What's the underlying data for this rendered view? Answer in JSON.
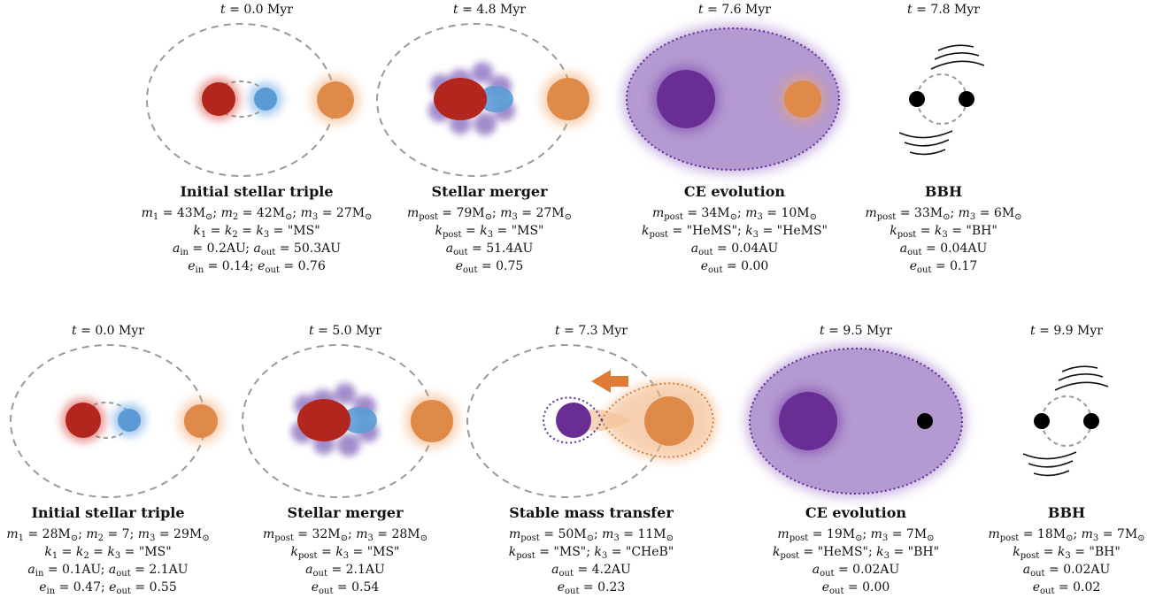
{
  "rows": [
    {
      "panels": [
        {
          "time": "0.0 Myr",
          "title": "Initial stellar triple",
          "info": [
            [
              [
                "i",
                "m"
              ],
              [
                "s",
                "1"
              ],
              [
                "t",
                " = 43M"
              ],
              [
                "s",
                "⊙"
              ],
              [
                "t",
                "; "
              ],
              [
                "i",
                "m"
              ],
              [
                "s",
                "2"
              ],
              [
                "t",
                " = 42M"
              ],
              [
                "s",
                "⊙"
              ],
              [
                "t",
                "; "
              ],
              [
                "i",
                "m"
              ],
              [
                "s",
                "3"
              ],
              [
                "t",
                " = 27M"
              ],
              [
                "s",
                "⊙"
              ]
            ],
            [
              [
                "i",
                "k"
              ],
              [
                "s",
                "1"
              ],
              [
                "t",
                " = "
              ],
              [
                "i",
                "k"
              ],
              [
                "s",
                "2"
              ],
              [
                "t",
                " = "
              ],
              [
                "i",
                "k"
              ],
              [
                "s",
                "3"
              ],
              [
                "t",
                " = \"MS\""
              ]
            ],
            [
              [
                "i",
                "a"
              ],
              [
                "s",
                "in"
              ],
              [
                "t",
                " = 0.2AU; "
              ],
              [
                "i",
                "a"
              ],
              [
                "s",
                "out"
              ],
              [
                "t",
                " = 50.3AU"
              ]
            ],
            [
              [
                "i",
                "e"
              ],
              [
                "s",
                "in"
              ],
              [
                "t",
                " = 0.14; "
              ],
              [
                "i",
                "e"
              ],
              [
                "s",
                "out"
              ],
              [
                "t",
                " = 0.76"
              ]
            ]
          ]
        },
        {
          "time": "4.8 Myr",
          "title": "Stellar merger",
          "info": [
            [
              [
                "i",
                "m"
              ],
              [
                "s",
                "post"
              ],
              [
                "t",
                " = 79M"
              ],
              [
                "s",
                "⊙"
              ],
              [
                "t",
                "; "
              ],
              [
                "i",
                "m"
              ],
              [
                "s",
                "3"
              ],
              [
                "t",
                " = 27M"
              ],
              [
                "s",
                "⊙"
              ]
            ],
            [
              [
                "i",
                "k"
              ],
              [
                "s",
                "post"
              ],
              [
                "t",
                " = "
              ],
              [
                "i",
                "k"
              ],
              [
                "s",
                "3"
              ],
              [
                "t",
                " = \"MS\""
              ]
            ],
            [
              [
                "i",
                "a"
              ],
              [
                "s",
                "out"
              ],
              [
                "t",
                " = 51.4AU"
              ]
            ],
            [
              [
                "i",
                "e"
              ],
              [
                "s",
                "out"
              ],
              [
                "t",
                " = 0.75"
              ]
            ]
          ]
        },
        {
          "time": "7.6 Myr",
          "title": "CE evolution",
          "info": [
            [
              [
                "i",
                "m"
              ],
              [
                "s",
                "post"
              ],
              [
                "t",
                " = 34M"
              ],
              [
                "s",
                "⊙"
              ],
              [
                "t",
                "; "
              ],
              [
                "i",
                "m"
              ],
              [
                "s",
                "3"
              ],
              [
                "t",
                " = 10M"
              ],
              [
                "s",
                "⊙"
              ]
            ],
            [
              [
                "i",
                "k"
              ],
              [
                "s",
                "post"
              ],
              [
                "t",
                " = \"HeMS\"; "
              ],
              [
                "i",
                "k"
              ],
              [
                "s",
                "3"
              ],
              [
                "t",
                " = \"HeMS\""
              ]
            ],
            [
              [
                "i",
                "a"
              ],
              [
                "s",
                "out"
              ],
              [
                "t",
                " = 0.04AU"
              ]
            ],
            [
              [
                "i",
                "e"
              ],
              [
                "s",
                "out"
              ],
              [
                "t",
                " = 0.00"
              ]
            ]
          ]
        },
        {
          "time": "7.8 Myr",
          "title": "BBH",
          "info": [
            [
              [
                "i",
                "m"
              ],
              [
                "s",
                "post"
              ],
              [
                "t",
                " = 33M"
              ],
              [
                "s",
                "⊙"
              ],
              [
                "t",
                "; "
              ],
              [
                "i",
                "m"
              ],
              [
                "s",
                "3"
              ],
              [
                "t",
                " = 6M"
              ],
              [
                "s",
                "⊙"
              ]
            ],
            [
              [
                "i",
                "k"
              ],
              [
                "s",
                "post"
              ],
              [
                "t",
                " = "
              ],
              [
                "i",
                "k"
              ],
              [
                "s",
                "3"
              ],
              [
                "t",
                " = \"BH\""
              ]
            ],
            [
              [
                "i",
                "a"
              ],
              [
                "s",
                "out"
              ],
              [
                "t",
                " = 0.04AU"
              ]
            ],
            [
              [
                "i",
                "e"
              ],
              [
                "s",
                "out"
              ],
              [
                "t",
                " = 0.17"
              ]
            ]
          ]
        }
      ]
    },
    {
      "panels": [
        {
          "time": "0.0 Myr",
          "title": "Initial stellar triple",
          "info": [
            [
              [
                "i",
                "m"
              ],
              [
                "s",
                "1"
              ],
              [
                "t",
                " = 28M"
              ],
              [
                "s",
                "⊙"
              ],
              [
                "t",
                "; "
              ],
              [
                "i",
                "m"
              ],
              [
                "s",
                "2"
              ],
              [
                "t",
                " = 7; "
              ],
              [
                "i",
                "m"
              ],
              [
                "s",
                "3"
              ],
              [
                "t",
                " = 29M"
              ],
              [
                "s",
                "⊙"
              ]
            ],
            [
              [
                "i",
                "k"
              ],
              [
                "s",
                "1"
              ],
              [
                "t",
                " = "
              ],
              [
                "i",
                "k"
              ],
              [
                "s",
                "2"
              ],
              [
                "t",
                " = "
              ],
              [
                "i",
                "k"
              ],
              [
                "s",
                "3"
              ],
              [
                "t",
                " = \"MS\""
              ]
            ],
            [
              [
                "i",
                "a"
              ],
              [
                "s",
                "in"
              ],
              [
                "t",
                " = 0.1AU; "
              ],
              [
                "i",
                "a"
              ],
              [
                "s",
                "out"
              ],
              [
                "t",
                " = 2.1AU"
              ]
            ],
            [
              [
                "i",
                "e"
              ],
              [
                "s",
                "in"
              ],
              [
                "t",
                " = 0.47; "
              ],
              [
                "i",
                "e"
              ],
              [
                "s",
                "out"
              ],
              [
                "t",
                " = 0.55"
              ]
            ]
          ]
        },
        {
          "time": "5.0 Myr",
          "title": "Stellar merger",
          "info": [
            [
              [
                "i",
                "m"
              ],
              [
                "s",
                "post"
              ],
              [
                "t",
                " = 32M"
              ],
              [
                "s",
                "⊙"
              ],
              [
                "t",
                "; "
              ],
              [
                "i",
                "m"
              ],
              [
                "s",
                "3"
              ],
              [
                "t",
                " = 28M"
              ],
              [
                "s",
                "⊙"
              ]
            ],
            [
              [
                "i",
                "k"
              ],
              [
                "s",
                "post"
              ],
              [
                "t",
                " = "
              ],
              [
                "i",
                "k"
              ],
              [
                "s",
                "3"
              ],
              [
                "t",
                " = \"MS\""
              ]
            ],
            [
              [
                "i",
                "a"
              ],
              [
                "s",
                "out"
              ],
              [
                "t",
                " = 2.1AU"
              ]
            ],
            [
              [
                "i",
                "e"
              ],
              [
                "s",
                "out"
              ],
              [
                "t",
                " = 0.54"
              ]
            ]
          ]
        },
        {
          "time": "7.3 Myr",
          "title": "Stable mass transfer",
          "info": [
            [
              [
                "i",
                "m"
              ],
              [
                "s",
                "post"
              ],
              [
                "t",
                " = 50M"
              ],
              [
                "s",
                "⊙"
              ],
              [
                "t",
                "; "
              ],
              [
                "i",
                "m"
              ],
              [
                "s",
                "3"
              ],
              [
                "t",
                " = 11M"
              ],
              [
                "s",
                "⊙"
              ]
            ],
            [
              [
                "i",
                "k"
              ],
              [
                "s",
                "post"
              ],
              [
                "t",
                " = \"MS\"; "
              ],
              [
                "i",
                "k"
              ],
              [
                "s",
                "3"
              ],
              [
                "t",
                " = \"CHeB\""
              ]
            ],
            [
              [
                "i",
                "a"
              ],
              [
                "s",
                "out"
              ],
              [
                "t",
                " = 4.2AU"
              ]
            ],
            [
              [
                "i",
                "e"
              ],
              [
                "s",
                "out"
              ],
              [
                "t",
                " = 0.23"
              ]
            ]
          ]
        },
        {
          "time": "9.5 Myr",
          "title": "CE evolution",
          "info": [
            [
              [
                "i",
                "m"
              ],
              [
                "s",
                "post"
              ],
              [
                "t",
                " = 19M"
              ],
              [
                "s",
                "⊙"
              ],
              [
                "t",
                "; "
              ],
              [
                "i",
                "m"
              ],
              [
                "s",
                "3"
              ],
              [
                "t",
                " = 7M"
              ],
              [
                "s",
                "⊙"
              ]
            ],
            [
              [
                "i",
                "k"
              ],
              [
                "s",
                "post"
              ],
              [
                "t",
                " = \"HeMS\"; "
              ],
              [
                "i",
                "k"
              ],
              [
                "s",
                "3"
              ],
              [
                "t",
                " = \"BH\""
              ]
            ],
            [
              [
                "i",
                "a"
              ],
              [
                "s",
                "out"
              ],
              [
                "t",
                " = 0.02AU"
              ]
            ],
            [
              [
                "i",
                "e"
              ],
              [
                "s",
                "out"
              ],
              [
                "t",
                " = 0.00"
              ]
            ]
          ]
        },
        {
          "time": "9.9 Myr",
          "title": "BBH",
          "info": [
            [
              [
                "i",
                "m"
              ],
              [
                "s",
                "post"
              ],
              [
                "t",
                " = 18M"
              ],
              [
                "s",
                "⊙"
              ],
              [
                "t",
                "; "
              ],
              [
                "i",
                "m"
              ],
              [
                "s",
                "3"
              ],
              [
                "t",
                " = 7M"
              ],
              [
                "s",
                "⊙"
              ]
            ],
            [
              [
                "i",
                "k"
              ],
              [
                "s",
                "post"
              ],
              [
                "t",
                " = "
              ],
              [
                "i",
                "k"
              ],
              [
                "s",
                "3"
              ],
              [
                "t",
                " = \"BH\""
              ]
            ],
            [
              [
                "i",
                "a"
              ],
              [
                "s",
                "out"
              ],
              [
                "t",
                " = 0.02AU"
              ]
            ],
            [
              [
                "i",
                "e"
              ],
              [
                "s",
                "out"
              ],
              [
                "t",
                " = 0.02"
              ]
            ]
          ]
        }
      ]
    }
  ],
  "colors": {
    "red_star": "#b3261e",
    "blue_star": "#5b9bd5",
    "orange_star": "#e08a4a",
    "purple_core": "#6a2d94",
    "envelope": "#b49ad1",
    "orbit": "#9a9a9a",
    "black_hole": "#000000",
    "arrow": "#e07a35"
  }
}
